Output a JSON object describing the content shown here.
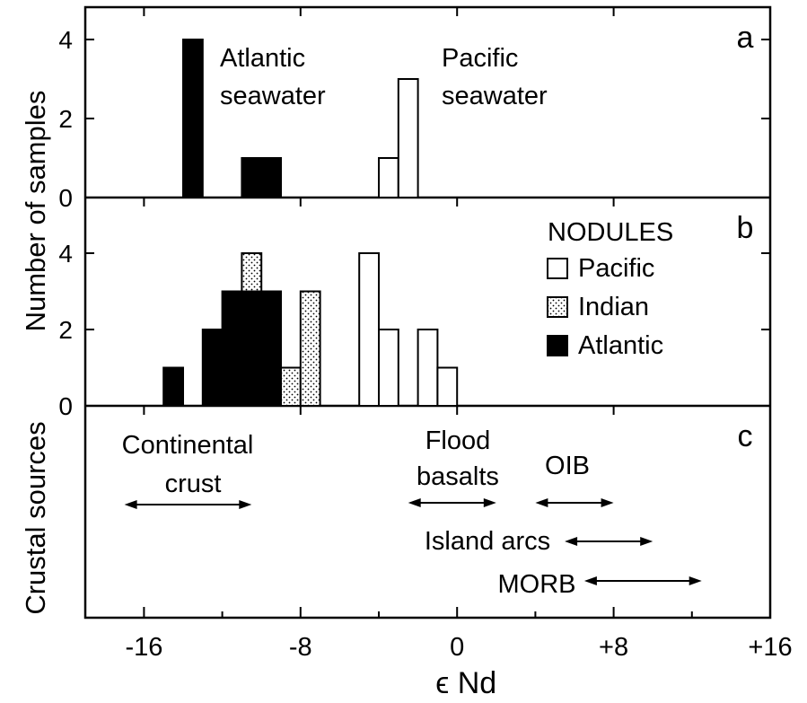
{
  "figure": {
    "x_axis_label": "ϵ Nd",
    "x_tick_labels": [
      "-16",
      "-8",
      "0",
      "+8",
      "+16"
    ],
    "x_ticks": [
      -16,
      -8,
      0,
      8,
      16
    ],
    "xlim": [
      -19,
      16
    ]
  },
  "chart_data": [
    {
      "type": "bar",
      "panel": "a",
      "ylabel": "",
      "ylim": [
        0,
        5
      ],
      "yticks": [
        0,
        2,
        4
      ],
      "y_tick_labels": [
        "0",
        "2",
        "4"
      ],
      "annotations": [
        {
          "lines": [
            "Atlantic",
            "seawater"
          ]
        },
        {
          "lines": [
            "Pacific",
            "seawater"
          ]
        }
      ],
      "series": [
        {
          "name": "Atlantic",
          "fill": "black",
          "bins": [
            {
              "x0": -14,
              "x1": -13,
              "count": 4
            },
            {
              "x0": -11,
              "x1": -9,
              "count": 1
            }
          ]
        },
        {
          "name": "Pacific",
          "fill": "white",
          "bins": [
            {
              "x0": -4,
              "x1": -3,
              "count": 1
            },
            {
              "x0": -3,
              "x1": -2,
              "count": 3
            }
          ]
        }
      ]
    },
    {
      "type": "bar",
      "panel": "b",
      "ylabel": "Number of samples",
      "ylim": [
        0,
        5
      ],
      "yticks": [
        0,
        2,
        4
      ],
      "y_tick_labels": [
        "0",
        "2",
        "4"
      ],
      "legend": {
        "title": "NODULES",
        "placement": "top-right",
        "entries": [
          {
            "label": "Pacific",
            "fill": "white"
          },
          {
            "label": "Indian",
            "fill": "dotted"
          },
          {
            "label": "Atlantic",
            "fill": "black"
          }
        ]
      },
      "series": [
        {
          "name": "Atlantic",
          "fill": "black",
          "bins": [
            {
              "x0": -15,
              "x1": -14,
              "count": 1
            },
            {
              "x0": -13,
              "x1": -12,
              "count": 2
            },
            {
              "x0": -12,
              "x1": -11,
              "count": 3
            },
            {
              "x0": -11,
              "x1": -10,
              "count": 3
            },
            {
              "x0": -10,
              "x1": -9,
              "count": 3
            }
          ]
        },
        {
          "name": "Indian",
          "fill": "dotted",
          "bins": [
            {
              "x0": -11,
              "x1": -10,
              "y0": 3,
              "count": 1
            },
            {
              "x0": -9,
              "x1": -8,
              "count": 1
            },
            {
              "x0": -8,
              "x1": -7,
              "count": 3
            }
          ]
        },
        {
          "name": "Pacific",
          "fill": "white",
          "bins": [
            {
              "x0": -5,
              "x1": -4,
              "count": 4
            },
            {
              "x0": -4,
              "x1": -3,
              "count": 2
            },
            {
              "x0": -2,
              "x1": -1,
              "count": 2
            },
            {
              "x0": -1,
              "x1": 0,
              "count": 1
            }
          ]
        }
      ]
    },
    {
      "type": "range",
      "panel": "c",
      "ylabel": "Crustal sources",
      "ranges": [
        {
          "lines": [
            "Continental",
            "crust"
          ],
          "x0": -17,
          "x1": -10.5
        },
        {
          "lines": [
            "Flood",
            "basalts"
          ],
          "x0": -2.5,
          "x1": 2
        },
        {
          "lines": [
            "OIB"
          ],
          "x0": 4,
          "x1": 8
        },
        {
          "lines": [
            "Island arcs"
          ],
          "x0": 5.5,
          "x1": 10
        },
        {
          "lines": [
            "MORB"
          ],
          "x0": 6.5,
          "x1": 12.5
        }
      ]
    }
  ]
}
